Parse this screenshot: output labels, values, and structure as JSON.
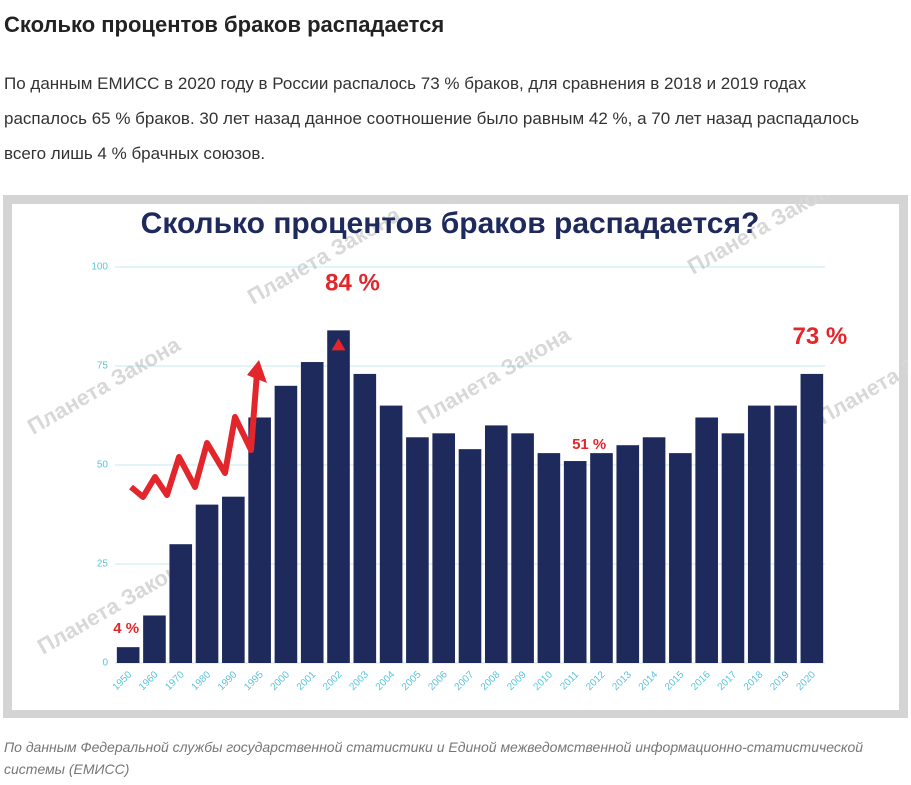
{
  "header": {
    "title": "Сколько процентов браков распадается"
  },
  "paragraph": "По данным ЕМИСС в 2020 году в России распалось 73 % браков, для сравнения в 2018 и 2019 годах распалось 65 % браков. 30 лет назад данное соотношение было равным 42 %, а 70 лет назад распадалось всего лишь 4 % брачных союзов.",
  "chart_data": {
    "type": "bar",
    "title": "Сколько процентов браков распадается?",
    "watermark": "Планета Закона",
    "categories": [
      "1950",
      "1960",
      "1970",
      "1980",
      "1990",
      "1995",
      "2000",
      "2001",
      "2002",
      "2003",
      "2004",
      "2005",
      "2006",
      "2007",
      "2008",
      "2009",
      "2010",
      "2011",
      "2012",
      "2013",
      "2014",
      "2015",
      "2016",
      "2017",
      "2018",
      "2019",
      "2020"
    ],
    "values": [
      4,
      12,
      30,
      40,
      42,
      62,
      70,
      76,
      84,
      73,
      65,
      57,
      58,
      54,
      60,
      58,
      53,
      51,
      53,
      55,
      57,
      53,
      62,
      58,
      65,
      65,
      73
    ],
    "value_labels": [
      "4 %",
      null,
      null,
      null,
      null,
      null,
      null,
      null,
      "84 %",
      null,
      null,
      null,
      null,
      null,
      null,
      null,
      null,
      "51 %",
      null,
      null,
      null,
      null,
      null,
      null,
      null,
      null,
      "73 %"
    ],
    "color": "#1f2a5c",
    "label_color": "#e3262b",
    "axis_color": "#5cc3dc",
    "ylim": [
      0,
      100
    ],
    "yticks": [
      0,
      25,
      50,
      75,
      100
    ],
    "grid": true
  },
  "caption": "По данным Федеральной службы государственной статистики и Единой межведомственной информационно-статистической системы (ЕМИСС)"
}
